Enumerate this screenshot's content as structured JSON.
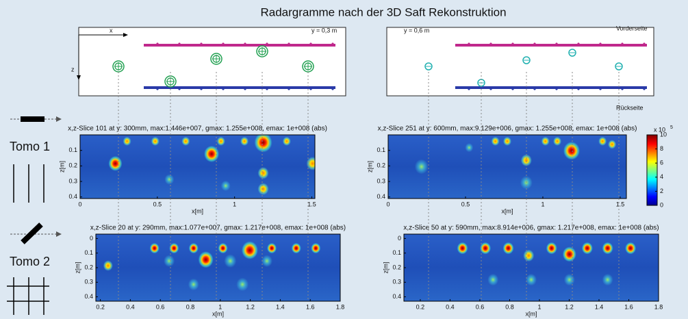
{
  "title": "Radargramme nach der 3D Saft Rekonstruktion",
  "schematics": [
    {
      "x_label": "x",
      "z_label": "z",
      "y_label": "y = 0,3 m"
    },
    {
      "y_label": "y = 0,6 m",
      "front_label": "Vorderseite",
      "back_label": "Rückseite"
    }
  ],
  "side": {
    "tomo1": "Tomo 1",
    "tomo2": "Tomo 2"
  },
  "panels": [
    {
      "title": "x,z-Slice 101 at y: 300mm, max:1.446e+007, gmax: 1.255e+008, emax: 1e+008 (abs)",
      "x_label": "x[m]",
      "y_label": "z[m]",
      "xlim": [
        0,
        1.52
      ],
      "xticks": [
        0,
        0.5,
        1,
        1.5
      ],
      "ylim": [
        0,
        0.41
      ],
      "yticks": [
        0.1,
        0.2,
        0.3,
        0.4
      ]
    },
    {
      "title": "x,z-Slice 251 at y: 600mm, max:9.129e+006, gmax: 1.255e+008, emax: 1e+008 (abs)",
      "x_label": "x[m]",
      "y_label": "z[m]",
      "xlim": [
        0,
        1.54
      ],
      "xticks": [
        0,
        0.5,
        1,
        1.5
      ],
      "ylim": [
        0,
        0.41
      ],
      "yticks": [
        0.1,
        0.2,
        0.3,
        0.4
      ]
    },
    {
      "title": "x,z-Slice 20 at y: 290mm, max:1.077e+007, gmax: 1.217e+008, emax: 1e+008 (abs)",
      "x_label": "x[m]",
      "y_label": "z[m]",
      "xlim": [
        0.17,
        1.8
      ],
      "xticks": [
        0.2,
        0.4,
        0.6,
        0.8,
        1,
        1.2,
        1.4,
        1.6,
        1.8
      ],
      "ylim": [
        -0.03,
        0.43
      ],
      "yticks": [
        0,
        0.1,
        0.2,
        0.3,
        0.4
      ]
    },
    {
      "title": "x,z-Slice 50 at y: 590mm, max:8.914e+006, gmax: 1.217e+008, emax: 1e+008 (abs)",
      "x_label": "x[m]",
      "y_label": "z[m]",
      "xlim": [
        0.09,
        1.8
      ],
      "xticks": [
        0.2,
        0.4,
        0.6,
        0.8,
        1,
        1.2,
        1.4,
        1.6,
        1.8
      ],
      "ylim": [
        -0.03,
        0.43
      ],
      "yticks": [
        0,
        0.1,
        0.2,
        0.3,
        0.4
      ]
    }
  ],
  "colorbar": {
    "ylim": [
      0,
      10
    ],
    "yticks": [
      0,
      2,
      4,
      6,
      8,
      10
    ],
    "scale_label": "x 10",
    "scale_exponent": "5"
  }
}
